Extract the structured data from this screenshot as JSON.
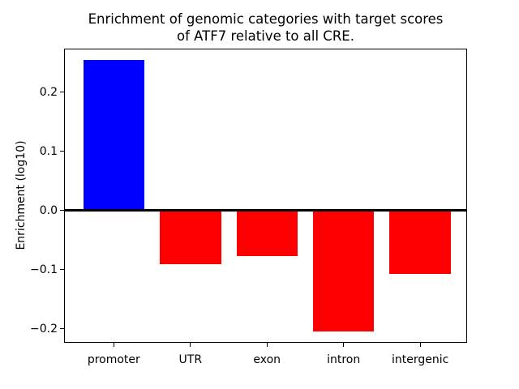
{
  "figure": {
    "title_line1": "Enrichment of genomic categories with target scores",
    "title_line2": "of ATF7 relative to all CRE.",
    "ylabel": "Enrichment (log10)"
  },
  "chart_data": {
    "type": "bar",
    "title": "Enrichment of genomic categories with target scores\nof ATF7 relative to all CRE.",
    "xlabel": "",
    "ylabel": "Enrichment (log10)",
    "categories": [
      "promoter",
      "UTR",
      "exon",
      "intron",
      "intergenic"
    ],
    "values": [
      0.255,
      -0.091,
      -0.077,
      -0.205,
      -0.108
    ],
    "bar_colors": [
      "#0000ff",
      "#ff0000",
      "#ff0000",
      "#ff0000",
      "#ff0000"
    ],
    "positive_color": "#0000ff",
    "negative_color": "#ff0000",
    "ylim": [
      -0.224,
      0.274
    ],
    "yticks": [
      0.2,
      0.1,
      0.0,
      -0.1,
      -0.2
    ],
    "ytick_labels": [
      "0.2",
      "0.1",
      "0.0",
      "−0.1",
      "−0.2"
    ],
    "zero_line": true,
    "zero_line_color": "#000000",
    "grid": false,
    "legend": false,
    "background_color": "#ffffff"
  }
}
